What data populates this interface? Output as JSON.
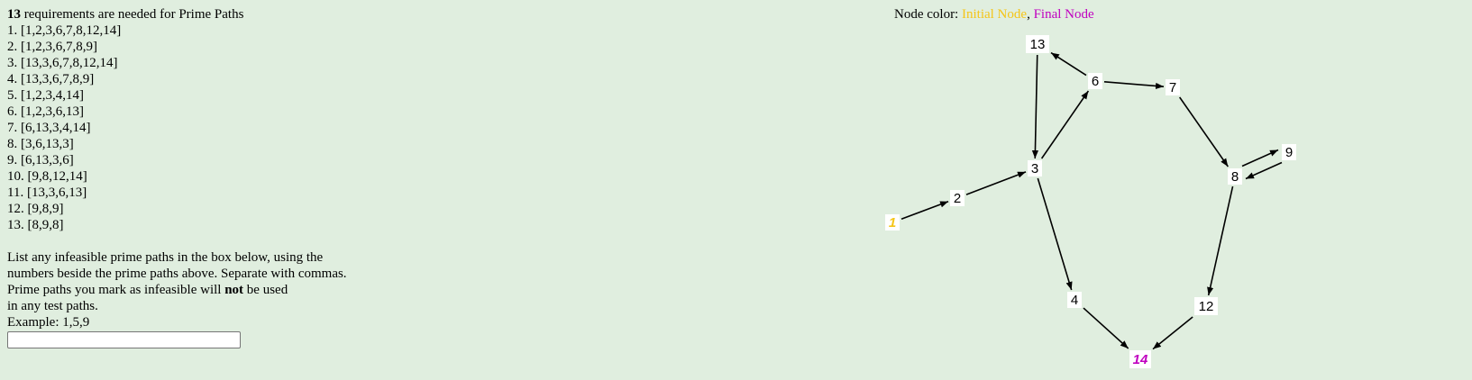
{
  "requirements": {
    "count": "13",
    "summary_suffix": " requirements are needed for Prime Paths",
    "items": [
      "1. [1,2,3,6,7,8,12,14]",
      "2. [1,2,3,6,7,8,9]",
      "3. [13,3,6,7,8,12,14]",
      "4. [13,3,6,7,8,9]",
      "5. [1,2,3,4,14]",
      "6. [1,2,3,6,13]",
      "7. [6,13,3,4,14]",
      "8. [3,6,13,3]",
      "9. [6,13,3,6]",
      "10. [9,8,12,14]",
      "11. [13,3,6,13]",
      "12. [9,8,9]",
      "13. [8,9,8]"
    ]
  },
  "instructions": {
    "line1": "List any infeasible prime paths in the box below, using the",
    "line2": "numbers beside the prime paths above. Separate with commas.",
    "line3_before": "Prime paths you mark as infeasible will ",
    "line3_bold": "not",
    "line3_after": " be used",
    "line4": "in any test paths.",
    "example": "Example: 1,5,9"
  },
  "answer_input": {
    "value": "",
    "placeholder": ""
  },
  "legend": {
    "prefix": "Node color: ",
    "initial_label": "Initial Node",
    "separator": ", ",
    "final_label": "Final Node",
    "initial_color": "#f5c518",
    "final_color": "#c000c0"
  },
  "graph": {
    "nodes": [
      {
        "id": "1",
        "label": "1",
        "type": "initial"
      },
      {
        "id": "2",
        "label": "2",
        "type": "normal"
      },
      {
        "id": "3",
        "label": "3",
        "type": "normal"
      },
      {
        "id": "4",
        "label": "4",
        "type": "normal"
      },
      {
        "id": "6",
        "label": "6",
        "type": "normal"
      },
      {
        "id": "7",
        "label": "7",
        "type": "normal"
      },
      {
        "id": "8",
        "label": "8",
        "type": "normal"
      },
      {
        "id": "9",
        "label": "9",
        "type": "normal"
      },
      {
        "id": "12",
        "label": "12",
        "type": "normal"
      },
      {
        "id": "13",
        "label": "13",
        "type": "normal"
      },
      {
        "id": "14",
        "label": "14",
        "type": "final"
      }
    ],
    "edges": [
      {
        "from": "1",
        "to": "2"
      },
      {
        "from": "2",
        "to": "3"
      },
      {
        "from": "3",
        "to": "6"
      },
      {
        "from": "3",
        "to": "4"
      },
      {
        "from": "6",
        "to": "13"
      },
      {
        "from": "13",
        "to": "3"
      },
      {
        "from": "6",
        "to": "7"
      },
      {
        "from": "7",
        "to": "8"
      },
      {
        "from": "8",
        "to": "9"
      },
      {
        "from": "9",
        "to": "8"
      },
      {
        "from": "8",
        "to": "12"
      },
      {
        "from": "4",
        "to": "14"
      },
      {
        "from": "12",
        "to": "14"
      }
    ]
  }
}
